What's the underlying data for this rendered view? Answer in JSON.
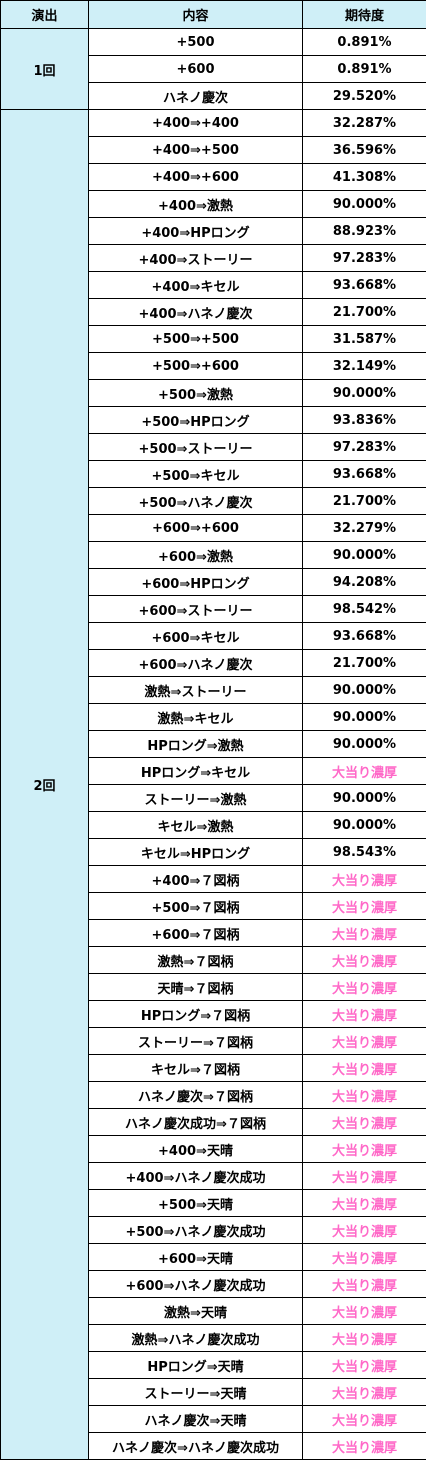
{
  "header": {
    "col1": "演出",
    "col2": "内容",
    "col3": "期待度"
  },
  "hot_color": "#ff69c8",
  "header_bg": "#cfeff7",
  "groups": [
    {
      "label": "1回",
      "rows": [
        {
          "content": "+500",
          "value": "0.891%",
          "hot": false
        },
        {
          "content": "+600",
          "value": "0.891%",
          "hot": false
        },
        {
          "content": "ハネノ慶次",
          "value": "29.520%",
          "hot": false
        }
      ]
    },
    {
      "label": "2回",
      "rows": [
        {
          "content": "+400⇒+400",
          "value": "32.287%",
          "hot": false
        },
        {
          "content": "+400⇒+500",
          "value": "36.596%",
          "hot": false
        },
        {
          "content": "+400⇒+600",
          "value": "41.308%",
          "hot": false
        },
        {
          "content": "+400⇒激熱",
          "value": "90.000%",
          "hot": false
        },
        {
          "content": "+400⇒HPロング",
          "value": "88.923%",
          "hot": false
        },
        {
          "content": "+400⇒ストーリー",
          "value": "97.283%",
          "hot": false
        },
        {
          "content": "+400⇒キセル",
          "value": "93.668%",
          "hot": false
        },
        {
          "content": "+400⇒ハネノ慶次",
          "value": "21.700%",
          "hot": false
        },
        {
          "content": "+500⇒+500",
          "value": "31.587%",
          "hot": false
        },
        {
          "content": "+500⇒+600",
          "value": "32.149%",
          "hot": false
        },
        {
          "content": "+500⇒激熱",
          "value": "90.000%",
          "hot": false
        },
        {
          "content": "+500⇒HPロング",
          "value": "93.836%",
          "hot": false
        },
        {
          "content": "+500⇒ストーリー",
          "value": "97.283%",
          "hot": false
        },
        {
          "content": "+500⇒キセル",
          "value": "93.668%",
          "hot": false
        },
        {
          "content": "+500⇒ハネノ慶次",
          "value": "21.700%",
          "hot": false
        },
        {
          "content": "+600⇒+600",
          "value": "32.279%",
          "hot": false
        },
        {
          "content": "+600⇒激熱",
          "value": "90.000%",
          "hot": false
        },
        {
          "content": "+600⇒HPロング",
          "value": "94.208%",
          "hot": false
        },
        {
          "content": "+600⇒ストーリー",
          "value": "98.542%",
          "hot": false
        },
        {
          "content": "+600⇒キセル",
          "value": "93.668%",
          "hot": false
        },
        {
          "content": "+600⇒ハネノ慶次",
          "value": "21.700%",
          "hot": false
        },
        {
          "content": "激熱⇒ストーリー",
          "value": "90.000%",
          "hot": false
        },
        {
          "content": "激熱⇒キセル",
          "value": "90.000%",
          "hot": false
        },
        {
          "content": "HPロング⇒激熱",
          "value": "90.000%",
          "hot": false
        },
        {
          "content": "HPロング⇒キセル",
          "value": "大当り濃厚",
          "hot": true
        },
        {
          "content": "ストーリー⇒激熱",
          "value": "90.000%",
          "hot": false
        },
        {
          "content": "キセル⇒激熱",
          "value": "90.000%",
          "hot": false
        },
        {
          "content": "キセル⇒HPロング",
          "value": "98.543%",
          "hot": false
        },
        {
          "content": "+400⇒７図柄",
          "value": "大当り濃厚",
          "hot": true
        },
        {
          "content": "+500⇒７図柄",
          "value": "大当り濃厚",
          "hot": true
        },
        {
          "content": "+600⇒７図柄",
          "value": "大当り濃厚",
          "hot": true
        },
        {
          "content": "激熱⇒７図柄",
          "value": "大当り濃厚",
          "hot": true
        },
        {
          "content": "天晴⇒７図柄",
          "value": "大当り濃厚",
          "hot": true
        },
        {
          "content": "HPロング⇒７図柄",
          "value": "大当り濃厚",
          "hot": true
        },
        {
          "content": "ストーリー⇒７図柄",
          "value": "大当り濃厚",
          "hot": true
        },
        {
          "content": "キセル⇒７図柄",
          "value": "大当り濃厚",
          "hot": true
        },
        {
          "content": "ハネノ慶次⇒７図柄",
          "value": "大当り濃厚",
          "hot": true
        },
        {
          "content": "ハネノ慶次成功⇒７図柄",
          "value": "大当り濃厚",
          "hot": true
        },
        {
          "content": "+400⇒天晴",
          "value": "大当り濃厚",
          "hot": true
        },
        {
          "content": "+400⇒ハネノ慶次成功",
          "value": "大当り濃厚",
          "hot": true
        },
        {
          "content": "+500⇒天晴",
          "value": "大当り濃厚",
          "hot": true
        },
        {
          "content": "+500⇒ハネノ慶次成功",
          "value": "大当り濃厚",
          "hot": true
        },
        {
          "content": "+600⇒天晴",
          "value": "大当り濃厚",
          "hot": true
        },
        {
          "content": "+600⇒ハネノ慶次成功",
          "value": "大当り濃厚",
          "hot": true
        },
        {
          "content": "激熱⇒天晴",
          "value": "大当り濃厚",
          "hot": true
        },
        {
          "content": "激熱⇒ハネノ慶次成功",
          "value": "大当り濃厚",
          "hot": true
        },
        {
          "content": "HPロング⇒天晴",
          "value": "大当り濃厚",
          "hot": true
        },
        {
          "content": "ストーリー⇒天晴",
          "value": "大当り濃厚",
          "hot": true
        },
        {
          "content": "ハネノ慶次⇒天晴",
          "value": "大当り濃厚",
          "hot": true
        },
        {
          "content": "ハネノ慶次⇒ハネノ慶次成功",
          "value": "大当り濃厚",
          "hot": true
        }
      ]
    }
  ]
}
